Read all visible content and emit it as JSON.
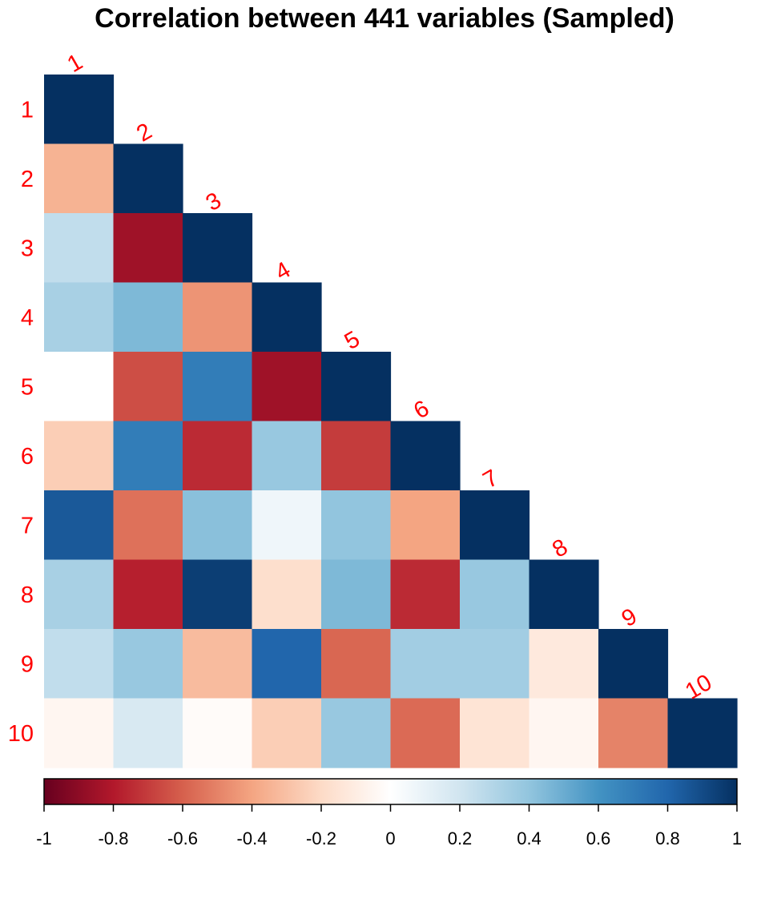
{
  "chart_data": {
    "type": "heatmap",
    "title": "Correlation between 441 variables (Sampled)",
    "variables": [
      "1",
      "2",
      "3",
      "4",
      "5",
      "6",
      "7",
      "8",
      "9",
      "10"
    ],
    "matrix_lower": [
      [
        1
      ],
      [
        -0.35,
        1
      ],
      [
        0.25,
        -0.85,
        1
      ],
      [
        0.33,
        0.45,
        -0.45,
        1
      ],
      [
        0.0,
        -0.65,
        0.7,
        -0.85,
        1
      ],
      [
        -0.25,
        0.7,
        -0.75,
        0.38,
        -0.7,
        1
      ],
      [
        0.85,
        -0.55,
        0.42,
        0.07,
        0.4,
        -0.4,
        1
      ],
      [
        0.33,
        -0.78,
        0.95,
        -0.18,
        0.45,
        -0.75,
        0.38,
        1
      ],
      [
        0.25,
        0.38,
        -0.32,
        0.8,
        -0.58,
        0.35,
        0.35,
        -0.12,
        1
      ],
      [
        -0.05,
        0.17,
        -0.02,
        -0.25,
        0.38,
        -0.57,
        -0.15,
        -0.05,
        -0.5,
        1
      ]
    ],
    "colorbar": {
      "range": [
        -1,
        1
      ],
      "ticks": [
        "-1",
        "-0.8",
        "-0.6",
        "-0.4",
        "-0.2",
        "0",
        "0.2",
        "0.4",
        "0.6",
        "0.8",
        "1"
      ],
      "colors": [
        "#67001F",
        "#B2182B",
        "#D6604D",
        "#F4A582",
        "#FDDBC7",
        "#FFFFFF",
        "#D1E5F0",
        "#92C5DE",
        "#4393C3",
        "#2166AC",
        "#053061"
      ]
    }
  }
}
